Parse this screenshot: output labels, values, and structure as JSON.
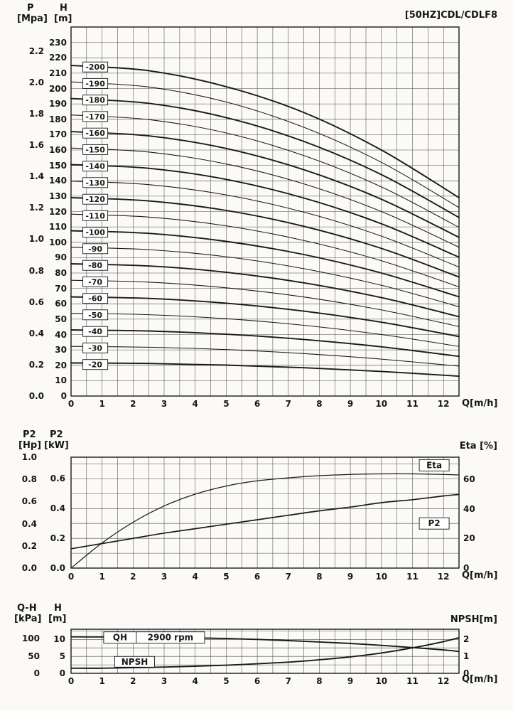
{
  "colors": {
    "ink": "#1a1a1a",
    "grid": "#4a4a4a",
    "background": "#fbfaf7",
    "label_box_bg": "#ffffff"
  },
  "title": "[50HZ]CDL/CDLF8",
  "chart_data": [
    {
      "id": "qh-multistage",
      "type": "line",
      "title": "[50HZ]CDL/CDLF8",
      "xlabel": "Q[m/h]",
      "xlim": [
        0,
        12.5
      ],
      "axes": {
        "p": {
          "name": "P",
          "unit": "[Mpa]",
          "ticks": [
            "0.0",
            "0.2",
            "0.4",
            "0.6",
            "0.8",
            "1.0",
            "1.2",
            "1.4",
            "1.6",
            "1.8",
            "2.0",
            "2.2"
          ]
        },
        "h": {
          "name": "H",
          "unit": "[m]",
          "lim": [
            0,
            240
          ],
          "ticks": [
            0,
            10,
            20,
            30,
            40,
            50,
            60,
            70,
            80,
            90,
            100,
            110,
            120,
            130,
            140,
            150,
            160,
            170,
            180,
            190,
            200,
            210,
            220,
            230
          ]
        },
        "x": {
          "name": "Q[m/h]",
          "ticks": [
            0,
            1,
            2,
            3,
            4,
            5,
            6,
            7,
            8,
            9,
            10,
            11,
            12
          ]
        }
      },
      "q": [
        0,
        2.5,
        5,
        7.5,
        10,
        12.5
      ],
      "series": [
        {
          "label": "-200",
          "bold": true,
          "values": [
            215,
            211.6,
            201.2,
            184.4,
            160,
            129
          ]
        },
        {
          "label": "-190",
          "bold": false,
          "values": [
            204.3,
            201,
            191.2,
            174.8,
            152,
            122.6
          ]
        },
        {
          "label": "-180",
          "bold": true,
          "values": [
            193.5,
            190.4,
            181.1,
            165.6,
            144,
            116.1
          ]
        },
        {
          "label": "-170",
          "bold": false,
          "values": [
            182.8,
            179.8,
            171.1,
            156.4,
            136,
            109.7
          ]
        },
        {
          "label": "-160",
          "bold": true,
          "values": [
            172,
            169.2,
            161,
            147.2,
            128,
            103.2
          ]
        },
        {
          "label": "-150",
          "bold": false,
          "values": [
            161.3,
            158.7,
            150.9,
            138,
            120,
            96.8
          ]
        },
        {
          "label": "-140",
          "bold": true,
          "values": [
            150.5,
            148.1,
            140.9,
            128.8,
            112,
            90.3
          ]
        },
        {
          "label": "-130",
          "bold": false,
          "values": [
            139.8,
            137.5,
            130.8,
            119.6,
            104,
            83.9
          ]
        },
        {
          "label": "-120",
          "bold": true,
          "values": [
            129,
            126.9,
            120.7,
            110.4,
            96,
            77.4
          ]
        },
        {
          "label": "-110",
          "bold": false,
          "values": [
            118.3,
            116.4,
            110.7,
            101.2,
            88,
            71
          ]
        },
        {
          "label": "-100",
          "bold": true,
          "values": [
            107.5,
            105.8,
            100.6,
            92,
            80,
            64.5
          ]
        },
        {
          "label": "-90",
          "bold": false,
          "values": [
            96.8,
            95.2,
            90.6,
            82.8,
            72,
            58.1
          ]
        },
        {
          "label": "-80",
          "bold": true,
          "values": [
            86,
            84.6,
            80.5,
            73.6,
            64,
            51.6
          ]
        },
        {
          "label": "-70",
          "bold": false,
          "values": [
            75.3,
            74.1,
            70.4,
            64.4,
            56,
            45.2
          ]
        },
        {
          "label": "-60",
          "bold": true,
          "values": [
            64.5,
            63.5,
            60.4,
            55.2,
            48,
            38.7
          ]
        },
        {
          "label": "-50",
          "bold": false,
          "values": [
            53.8,
            52.9,
            50.3,
            46,
            40,
            32.3
          ]
        },
        {
          "label": "-40",
          "bold": true,
          "values": [
            43,
            42.3,
            40.2,
            36.8,
            32,
            25.8
          ]
        },
        {
          "label": "-30",
          "bold": false,
          "values": [
            32.3,
            31.7,
            30.2,
            27.6,
            24,
            19.4
          ]
        },
        {
          "label": "-20",
          "bold": true,
          "values": [
            21.5,
            21.2,
            20.1,
            18.4,
            16,
            12.9
          ]
        }
      ]
    },
    {
      "id": "power-efficiency",
      "type": "line",
      "xlabel": "Q[m/h]",
      "xlim": [
        0,
        12.5
      ],
      "axes": {
        "hp": {
          "name": "P2",
          "unit": "[Hp]",
          "lim": [
            0,
            1.0
          ],
          "ticks": [
            "1.0",
            "0.8",
            "0.6",
            "0.4",
            "0.2",
            "0.0"
          ]
        },
        "kw": {
          "name": "P2",
          "unit": "[kW]",
          "lim": [
            0,
            0.7457
          ],
          "ticks": [
            "0.6",
            "0.4",
            "0.2",
            "0.0"
          ]
        },
        "eta": {
          "name": "Eta [%]",
          "lim": [
            0,
            75
          ],
          "ticks": [
            60,
            40,
            20,
            0
          ]
        },
        "x": {
          "name": "Q[m/h]",
          "ticks": [
            0,
            1,
            2,
            3,
            4,
            5,
            6,
            7,
            8,
            9,
            10,
            11,
            12
          ]
        }
      },
      "q": [
        0,
        1,
        2,
        3,
        4,
        5,
        6,
        7,
        8,
        9,
        10,
        11,
        12,
        12.5
      ],
      "series": [
        {
          "label": "Eta",
          "axis": "eta",
          "values": [
            0,
            17,
            31,
            42,
            50,
            55.5,
            59,
            61,
            62.5,
            63.3,
            63.7,
            63.7,
            63.3,
            63
          ]
        },
        {
          "label": "P2",
          "axis": "kw",
          "values": [
            0.13,
            0.165,
            0.2,
            0.235,
            0.265,
            0.295,
            0.325,
            0.355,
            0.385,
            0.41,
            0.44,
            0.46,
            0.485,
            0.495
          ]
        }
      ]
    },
    {
      "id": "single-stage-qh-npsh",
      "type": "line",
      "xlabel": "Q[m/h]",
      "xlim": [
        0,
        12.5
      ],
      "rpm": "2900 rpm",
      "axes": {
        "kpa": {
          "name": "Q-H",
          "unit": "[kPa]",
          "ticks": [
            100,
            50,
            0
          ]
        },
        "h": {
          "name": "H",
          "unit": "[m]",
          "lim": [
            0,
            13
          ],
          "ticks": [
            10,
            5,
            0
          ]
        },
        "npsh": {
          "name": "NPSH[m]",
          "lim": [
            0,
            2.6
          ],
          "ticks": [
            2,
            1,
            0
          ]
        },
        "x": {
          "name": "Q[m/h]",
          "ticks": [
            0,
            1,
            2,
            3,
            4,
            5,
            6,
            7,
            8,
            9,
            10,
            11,
            12
          ]
        }
      },
      "q": [
        0,
        1,
        2,
        3,
        4,
        5,
        6,
        7,
        8,
        9,
        10,
        11,
        12,
        12.5
      ],
      "series": [
        {
          "label": "QH",
          "axis": "h",
          "values": [
            10.75,
            10.73,
            10.68,
            10.6,
            10.45,
            10.25,
            10,
            9.65,
            9.25,
            8.8,
            8.25,
            7.6,
            6.9,
            6.45
          ]
        },
        {
          "label": "NPSH",
          "axis": "npsh",
          "values": [
            0.3,
            0.3,
            0.33,
            0.37,
            0.42,
            0.48,
            0.56,
            0.66,
            0.8,
            0.97,
            1.2,
            1.5,
            1.87,
            2.1
          ]
        }
      ]
    }
  ]
}
